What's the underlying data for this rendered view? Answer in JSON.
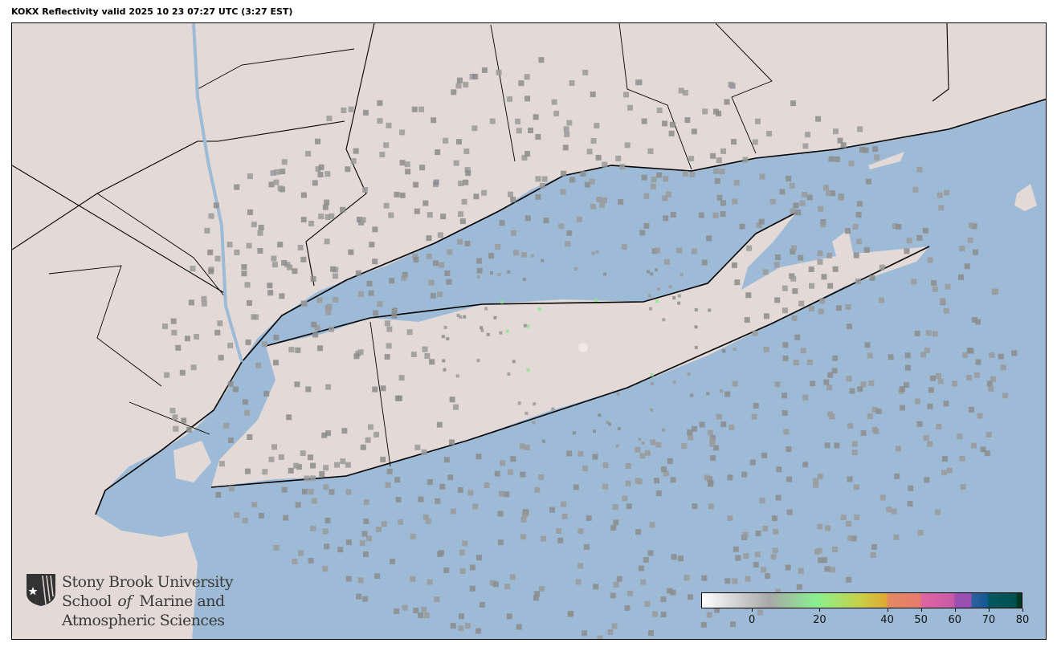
{
  "title": "KOKX Reflectivity valid 2025 10 23 07:27 UTC (3:27 EST)",
  "map": {
    "ocean_color": "#9dbbd7",
    "land_color": "#e3d9d6",
    "radar_site": "KOKX"
  },
  "logo": {
    "line1": "Stony Brook University",
    "line2a": "School ",
    "line2b": "of",
    "line2c": " Marine and",
    "line3": "Atmospheric Sciences"
  },
  "colorbar": {
    "units_min": -15,
    "units_max": 80,
    "ticks": [
      "0",
      "20",
      "40",
      "50",
      "60",
      "70",
      "80"
    ],
    "tick_values": [
      0,
      20,
      40,
      50,
      60,
      70,
      80
    ],
    "stops": [
      {
        "v": -15,
        "c": "#ffffff"
      },
      {
        "v": 5,
        "c": "#a8a8a8"
      },
      {
        "v": 19,
        "c": "#88f090"
      },
      {
        "v": 32,
        "c": "#c8d048"
      },
      {
        "v": 40,
        "c": "#e0a830"
      },
      {
        "v": 40.1,
        "c": "#e48a60"
      },
      {
        "v": 50,
        "c": "#e87a70"
      },
      {
        "v": 50.1,
        "c": "#e066a0"
      },
      {
        "v": 60,
        "c": "#c858a8"
      },
      {
        "v": 60.1,
        "c": "#9a50b0"
      },
      {
        "v": 65,
        "c": "#9a50b0"
      },
      {
        "v": 65.1,
        "c": "#3060a0"
      },
      {
        "v": 70,
        "c": "#105890"
      },
      {
        "v": 70.1,
        "c": "#005860"
      },
      {
        "v": 78.5,
        "c": "#005050"
      },
      {
        "v": 78.6,
        "c": "#003828"
      },
      {
        "v": 80,
        "c": "#003828"
      }
    ]
  }
}
